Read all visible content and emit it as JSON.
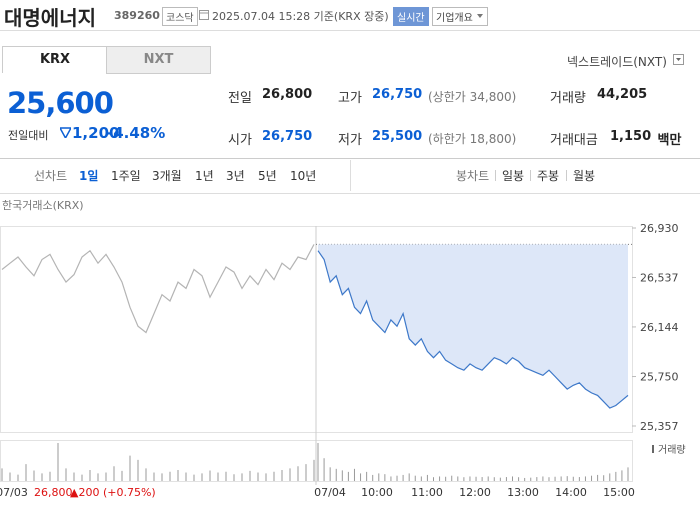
{
  "header": {
    "name": "대명에너지",
    "code": "389260",
    "market": "코스닥",
    "timestamp": "2025.07.04 15:28 기준(KRX 장중)",
    "realtime": "실시간",
    "company": "기업개요"
  },
  "tabs": [
    "KRX",
    "NXT"
  ],
  "nxt_link": "넥스트레이드(NXT)",
  "price": {
    "current": "25,600",
    "change_label": "전일대비",
    "change": "1,200",
    "rate": "-4.48%"
  },
  "stats": [
    {
      "label": "전일",
      "value": "26,800"
    },
    {
      "label": "고가",
      "value": "26,750",
      "note": "(상한가 34,800)"
    },
    {
      "label": "거래량",
      "value": "44,205"
    },
    {
      "label": "시가",
      "value": "26,750"
    },
    {
      "label": "저가",
      "value": "25,500",
      "note": "(하한가 18,800)"
    },
    {
      "label": "거래대금",
      "value": "1,150",
      "unit": "백만"
    }
  ],
  "toolbar": {
    "line_label": "선차트",
    "periods": [
      "1일",
      "1주일",
      "3개월",
      "1년",
      "3년",
      "5년",
      "10년"
    ],
    "candle_label": "봉차트",
    "candles": [
      "일봉",
      "주봉",
      "월봉"
    ]
  },
  "chart": {
    "type": "line",
    "source": "한국거래소(KRX)",
    "ylim": [
      25357,
      26930
    ],
    "yticks": [
      {
        "value": 26930,
        "label": "26,930"
      },
      {
        "value": 26537,
        "label": "26,537"
      },
      {
        "value": 26144,
        "label": "26,144"
      },
      {
        "value": 25750,
        "label": "25,750"
      },
      {
        "value": 25357,
        "label": "25,357"
      }
    ],
    "reference": 26800,
    "series": [
      {
        "name": "07/03",
        "color": "#b4b4b4",
        "values": [
          26600,
          26650,
          26700,
          26620,
          26550,
          26680,
          26720,
          26600,
          26500,
          26560,
          26700,
          26750,
          26650,
          26720,
          26620,
          26500,
          26300,
          26150,
          26100,
          26250,
          26400,
          26350,
          26500,
          26450,
          26600,
          26550,
          26380,
          26500,
          26620,
          26580,
          26450,
          26550,
          26480,
          26600,
          26520,
          26650,
          26600,
          26700,
          26680,
          26800
        ]
      },
      {
        "name": "07/04",
        "color": "#3d78c9",
        "values": [
          26750,
          26680,
          26500,
          26550,
          26400,
          26450,
          26300,
          26250,
          26350,
          26200,
          26150,
          26100,
          26200,
          26150,
          26250,
          26050,
          26000,
          26050,
          25950,
          25900,
          25950,
          25880,
          25850,
          25820,
          25800,
          25850,
          25820,
          25800,
          25850,
          25900,
          25880,
          25850,
          25900,
          25870,
          25820,
          25800,
          25780,
          25760,
          25800,
          25750,
          25700,
          25650,
          25680,
          25700,
          25650,
          25620,
          25600,
          25550,
          25500,
          25520,
          25560,
          25600
        ]
      }
    ],
    "volume": {
      "name": "거래량",
      "series": [
        [
          300,
          200,
          150,
          400,
          250,
          180,
          220,
          900,
          300,
          200,
          150,
          260,
          180,
          200,
          350,
          240,
          600,
          500,
          300,
          200,
          180,
          220,
          260,
          200,
          150,
          180,
          250,
          200,
          220,
          160,
          180,
          240,
          200,
          180,
          220,
          260,
          300,
          350,
          400,
          500
        ],
        [
          2500,
          1500,
          900,
          800,
          700,
          600,
          800,
          500,
          600,
          400,
          500,
          450,
          300,
          350,
          400,
          500,
          350,
          300,
          400,
          250,
          300,
          280,
          350,
          300,
          250,
          300,
          280,
          260,
          300,
          250,
          220,
          260,
          300,
          250,
          200,
          220,
          260,
          300,
          250,
          280,
          300,
          320,
          280,
          260,
          300,
          350,
          400,
          380,
          500,
          600,
          700,
          900
        ]
      ]
    },
    "xticks": [
      "07/03",
      "07/04",
      "10:00",
      "11:00",
      "12:00",
      "13:00",
      "14:00",
      "15:00"
    ],
    "prev_summary": {
      "close": "26,800",
      "change": "▲200 (+0.75%)"
    }
  }
}
